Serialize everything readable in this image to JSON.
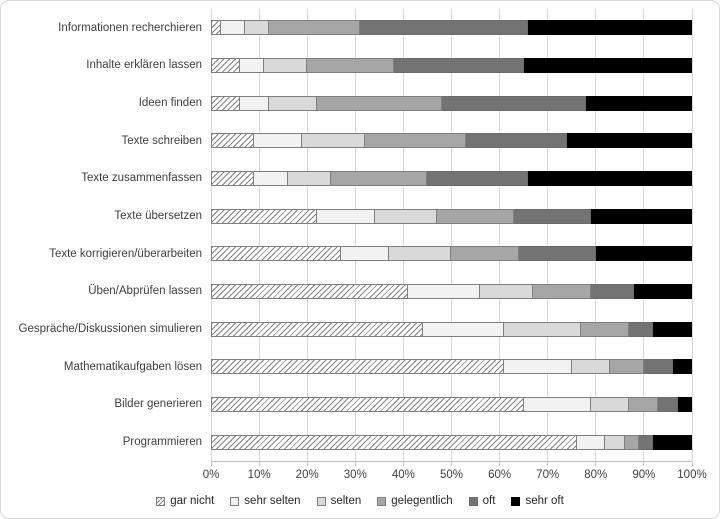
{
  "chart_data": {
    "type": "bar",
    "orientation": "horizontal-stacked",
    "title": "",
    "xlabel": "",
    "ylabel": "",
    "unit": "%",
    "xlim": [
      0,
      100
    ],
    "grid": true,
    "legend_position": "bottom",
    "x_axis_ticks": [
      "0%",
      "10%",
      "20%",
      "30%",
      "40%",
      "50%",
      "60%",
      "70%",
      "80%",
      "90%",
      "100%"
    ],
    "series": [
      {
        "name": "gar nicht",
        "color": "#FFFFFF",
        "pattern": "diagonal-hatch",
        "hatch_color": "#808080",
        "border": "#7F7F7F"
      },
      {
        "name": "sehr selten",
        "color": "#F2F2F2",
        "border": "#7F7F7F"
      },
      {
        "name": "selten",
        "color": "#D9D9D9",
        "border": "#7F7F7F"
      },
      {
        "name": "gelegentlich",
        "color": "#A6A6A6",
        "border": "#7F7F7F"
      },
      {
        "name": "oft",
        "color": "#737373",
        "border": "#6B6B6B"
      },
      {
        "name": "sehr oft",
        "color": "#000000",
        "border": "#000000"
      }
    ],
    "categories": [
      "Informationen recherchieren",
      "Inhalte erklären lassen",
      "Ideen finden",
      "Texte schreiben",
      "Texte zusammenfassen",
      "Texte übersetzen",
      "Texte korrigieren/überarbeiten",
      "Üben/Abprüfen lassen",
      "Gespräche/Diskussionen simulieren",
      "Mathematikaufgaben lösen",
      "Bilder generieren",
      "Programmieren"
    ],
    "values": [
      [
        2,
        5,
        5,
        19,
        35,
        34
      ],
      [
        6,
        5,
        9,
        18,
        27,
        35
      ],
      [
        6,
        6,
        10,
        26,
        30,
        22
      ],
      [
        9,
        10,
        13,
        21,
        21,
        26
      ],
      [
        9,
        7,
        9,
        20,
        21,
        34
      ],
      [
        22,
        12,
        13,
        16,
        16,
        21
      ],
      [
        27,
        10,
        13,
        14,
        16,
        20
      ],
      [
        41,
        15,
        11,
        12,
        9,
        12
      ],
      [
        44,
        17,
        16,
        10,
        5,
        8
      ],
      [
        61,
        14,
        8,
        7,
        6,
        4
      ],
      [
        65,
        14,
        8,
        6,
        4,
        3
      ],
      [
        76,
        6,
        4,
        3,
        3,
        8
      ]
    ],
    "colors_meta": {
      "gridline": "#D9D9D9",
      "axis_line": "#BFBFBF",
      "label_text": "#3F3F3F"
    }
  }
}
